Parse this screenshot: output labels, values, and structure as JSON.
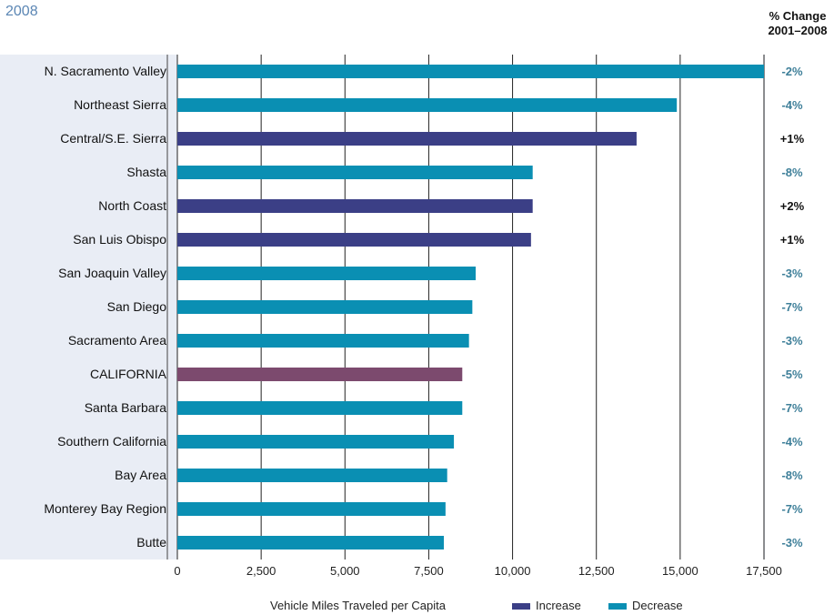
{
  "header": {
    "year_label": "2008",
    "change_title_line1": "% Change",
    "change_title_line2": "2001–2008"
  },
  "colors": {
    "increase": "#3b3f86",
    "decrease": "#0a8fb3",
    "california": "#7c4a6e",
    "change_negative": "#3e7f99",
    "change_positive": "#111111",
    "band": "#e9edf5"
  },
  "chart_data": {
    "type": "bar",
    "orientation": "horizontal",
    "categories": [
      "N. Sacramento Valley",
      "Northeast Sierra",
      "Central/S.E. Sierra",
      "Shasta",
      "North Coast",
      "San Luis Obispo",
      "San Joaquin Valley",
      "San Diego",
      "Sacramento Area",
      "CALIFORNIA",
      "Santa Barbara",
      "Southern California",
      "Bay Area",
      "Monterey Bay Region",
      "Butte"
    ],
    "values": [
      17500,
      14900,
      13700,
      10600,
      10600,
      10550,
      8900,
      8800,
      8700,
      8500,
      8500,
      8250,
      8050,
      8000,
      7950
    ],
    "direction": [
      "Decrease",
      "Decrease",
      "Increase",
      "Decrease",
      "Increase",
      "Increase",
      "Decrease",
      "Decrease",
      "Decrease",
      "State",
      "Decrease",
      "Decrease",
      "Decrease",
      "Decrease",
      "Decrease"
    ],
    "pct_change": [
      "-2%",
      "-4%",
      "+1%",
      "-8%",
      "+2%",
      "+1%",
      "-3%",
      "-7%",
      "-3%",
      "-5%",
      "-7%",
      "-4%",
      "-8%",
      "-7%",
      "-3%"
    ],
    "xlim": [
      0,
      17500
    ],
    "xticks": [
      0,
      2500,
      5000,
      7500,
      10000,
      12500,
      15000,
      17500
    ],
    "xtick_labels": [
      "0",
      "2,500",
      "5,000",
      "7,500",
      "10,000",
      "12,500",
      "15,000",
      "17,500"
    ],
    "xlabel": "Vehicle Miles Traveled per Capita",
    "grid": true,
    "legend": {
      "position": "bottom",
      "entries": [
        {
          "label": "Increase",
          "color": "#3b3f86"
        },
        {
          "label": "Decrease",
          "color": "#0a8fb3"
        }
      ]
    }
  }
}
